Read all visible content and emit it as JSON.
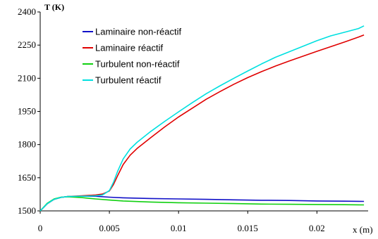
{
  "chart_data": {
    "type": "line",
    "ylabel": "T (K)",
    "xlabel": "x (m)",
    "xlim": [
      0,
      0.0237
    ],
    "ylim": [
      1500,
      2400
    ],
    "xticks": [
      0,
      0.005,
      0.01,
      0.015,
      0.02
    ],
    "xtick_labels": [
      "0",
      "0.005",
      "0.01",
      "0.015",
      "0.02"
    ],
    "yticks": [
      1500,
      1650,
      1800,
      1950,
      2100,
      2250,
      2400
    ],
    "ytick_labels": [
      "1500",
      "1650",
      "1800",
      "1950",
      "2100",
      "2250",
      "2400"
    ],
    "grid": false,
    "legend_position": "top-left",
    "series": [
      {
        "name": "Laminaire non-réactif",
        "color": "#1010c8",
        "x": [
          0,
          0.0005,
          0.001,
          0.0015,
          0.002,
          0.003,
          0.004,
          0.005,
          0.006,
          0.008,
          0.01,
          0.012,
          0.014,
          0.016,
          0.018,
          0.02,
          0.022,
          0.0234
        ],
        "y": [
          1500,
          1532,
          1552,
          1561,
          1565,
          1566,
          1566,
          1562,
          1559,
          1556,
          1554,
          1552,
          1550,
          1548,
          1547,
          1545,
          1544,
          1543
        ]
      },
      {
        "name": "Laminaire réactif",
        "color": "#e00000",
        "x": [
          0,
          0.0005,
          0.001,
          0.0015,
          0.002,
          0.003,
          0.004,
          0.0045,
          0.005,
          0.0053,
          0.0056,
          0.006,
          0.0065,
          0.007,
          0.008,
          0.009,
          0.01,
          0.011,
          0.012,
          0.013,
          0.014,
          0.015,
          0.016,
          0.017,
          0.018,
          0.019,
          0.02,
          0.021,
          0.022,
          0.023,
          0.0234
        ],
        "y": [
          1500,
          1532,
          1552,
          1561,
          1565,
          1568,
          1572,
          1576,
          1590,
          1620,
          1660,
          1710,
          1752,
          1782,
          1832,
          1880,
          1925,
          1965,
          2005,
          2040,
          2073,
          2103,
          2130,
          2155,
          2178,
          2200,
          2222,
          2243,
          2264,
          2286,
          2296
        ]
      },
      {
        "name": "Turbulent non-réactif",
        "color": "#10d010",
        "x": [
          0,
          0.0005,
          0.001,
          0.0015,
          0.002,
          0.003,
          0.004,
          0.005,
          0.006,
          0.008,
          0.01,
          0.012,
          0.014,
          0.016,
          0.018,
          0.02,
          0.022,
          0.0234
        ],
        "y": [
          1500,
          1534,
          1554,
          1562,
          1564,
          1560,
          1554,
          1549,
          1545,
          1540,
          1537,
          1535,
          1533,
          1531,
          1530,
          1529,
          1528,
          1527
        ]
      },
      {
        "name": "Turbulent réactif",
        "color": "#00e0e0",
        "x": [
          0,
          0.0005,
          0.001,
          0.0015,
          0.002,
          0.003,
          0.004,
          0.0045,
          0.005,
          0.0053,
          0.0056,
          0.006,
          0.0065,
          0.007,
          0.008,
          0.009,
          0.01,
          0.011,
          0.012,
          0.013,
          0.014,
          0.015,
          0.016,
          0.017,
          0.018,
          0.019,
          0.02,
          0.021,
          0.022,
          0.023,
          0.0234
        ],
        "y": [
          1500,
          1532,
          1552,
          1561,
          1565,
          1566,
          1568,
          1572,
          1592,
          1630,
          1680,
          1735,
          1780,
          1810,
          1860,
          1905,
          1948,
          1990,
          2030,
          2066,
          2100,
          2133,
          2165,
          2195,
          2220,
          2245,
          2270,
          2292,
          2308,
          2325,
          2337
        ]
      }
    ]
  }
}
